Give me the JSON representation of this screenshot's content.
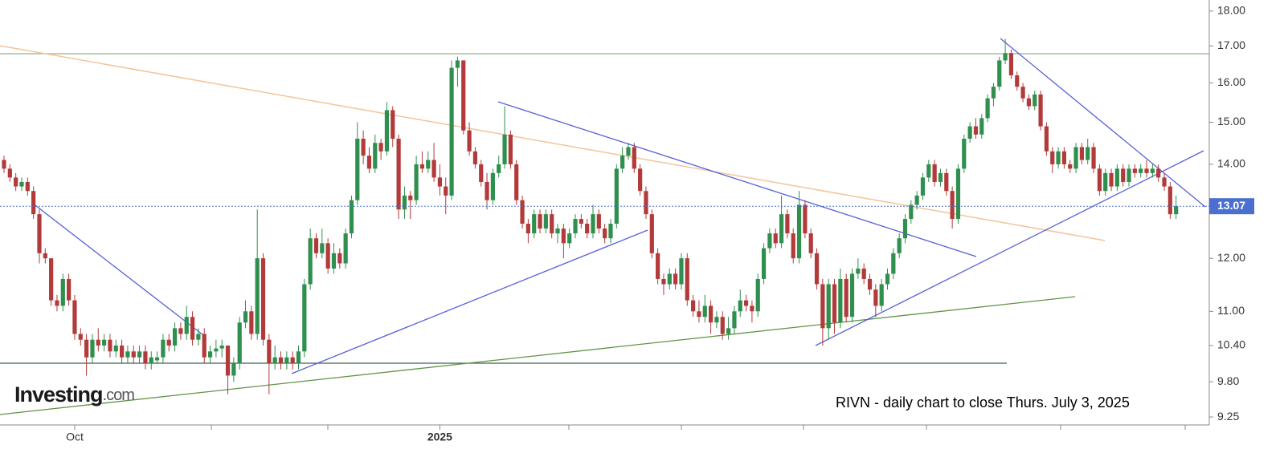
{
  "chart_data": {
    "type": "candlestick",
    "annotation": "RIVN - daily chart to close Thurs. July 3, 2025",
    "watermark": {
      "brand": "Investing",
      "suffix": ".com"
    },
    "log_scale": true,
    "ylim": [
      9.13,
      18.33
    ],
    "yticks": [
      {
        "value": 18,
        "label": "18.00"
      },
      {
        "value": 17,
        "label": "17.00"
      },
      {
        "value": 16,
        "label": "16.00"
      },
      {
        "value": 15,
        "label": "15.00"
      },
      {
        "value": 14,
        "label": "14.00"
      },
      {
        "value": 12,
        "label": "12.00"
      },
      {
        "value": 11,
        "label": "11.00"
      },
      {
        "value": 10.4,
        "label": "10.40"
      },
      {
        "value": 9.8,
        "label": "9.80"
      },
      9.25
    ],
    "last_price": 13.07,
    "colors": {
      "up": "#2f8f4e",
      "down": "#b23a3a",
      "last_price": "#4a6fd0"
    },
    "categories": [
      null,
      null,
      null,
      null,
      null,
      null,
      null,
      null,
      null,
      null,
      null,
      null,
      "Oct",
      null,
      null,
      null,
      null,
      null,
      null,
      null,
      null,
      null,
      null,
      null,
      null,
      null,
      null,
      null,
      null,
      null,
      null,
      null,
      null,
      null,
      null,
      null,
      null,
      null,
      null,
      null,
      null,
      null,
      null,
      null,
      null,
      null,
      null,
      null,
      null,
      null,
      null,
      null,
      null,
      null,
      null,
      null,
      null,
      null,
      null,
      null,
      null,
      null,
      null,
      null,
      null,
      null,
      null,
      null,
      null,
      null,
      null,
      null,
      null,
      null,
      "2025",
      null,
      null,
      null,
      null,
      null,
      null,
      null,
      null,
      null,
      null,
      null,
      null,
      null,
      null,
      null,
      null,
      null,
      null,
      null,
      null,
      null,
      null,
      null,
      null,
      null,
      null,
      null,
      null,
      null,
      null,
      null,
      null,
      null,
      null,
      null,
      null,
      null,
      null,
      null,
      null,
      null,
      null,
      null,
      null,
      null,
      null,
      null,
      null,
      null,
      null,
      null,
      null,
      null,
      null,
      null,
      null,
      null,
      null,
      null,
      null,
      null,
      null,
      null,
      null,
      null,
      null,
      null,
      null,
      null,
      null,
      null,
      null,
      null,
      null,
      null,
      null,
      null,
      null,
      null,
      null,
      null,
      null,
      null,
      null,
      null,
      null,
      null,
      null,
      null,
      null,
      null,
      null,
      null,
      null,
      null,
      null,
      null,
      null,
      null,
      null,
      null,
      null,
      null,
      null,
      null,
      null,
      null,
      null,
      null,
      null,
      null,
      null,
      null
    ],
    "ohlc": [
      [
        14.1,
        14.2,
        13.8,
        13.9
      ],
      [
        13.9,
        14.0,
        13.6,
        13.7
      ],
      [
        13.7,
        13.8,
        13.4,
        13.5
      ],
      [
        13.5,
        13.7,
        13.4,
        13.6
      ],
      [
        13.6,
        13.7,
        13.3,
        13.4
      ],
      [
        13.4,
        13.5,
        12.8,
        12.9
      ],
      [
        12.9,
        13.0,
        11.9,
        12.1
      ],
      [
        12.1,
        12.2,
        11.9,
        12.0
      ],
      [
        12.0,
        12.0,
        11.1,
        11.2
      ],
      [
        11.2,
        11.3,
        11.0,
        11.1
      ],
      [
        11.1,
        11.7,
        11.0,
        11.6
      ],
      [
        11.6,
        11.7,
        11.1,
        11.2
      ],
      [
        11.2,
        11.3,
        10.5,
        10.6
      ],
      [
        10.6,
        10.7,
        10.4,
        10.5
      ],
      [
        10.5,
        10.6,
        9.9,
        10.2
      ],
      [
        10.2,
        10.6,
        10.1,
        10.5
      ],
      [
        10.5,
        10.7,
        10.3,
        10.4
      ],
      [
        10.4,
        10.6,
        10.3,
        10.5
      ],
      [
        10.5,
        10.6,
        10.2,
        10.3
      ],
      [
        10.3,
        10.5,
        10.2,
        10.4
      ],
      [
        10.4,
        10.5,
        10.1,
        10.2
      ],
      [
        10.2,
        10.4,
        10.1,
        10.3
      ],
      [
        10.3,
        10.4,
        10.1,
        10.2
      ],
      [
        10.2,
        10.4,
        10.1,
        10.3
      ],
      [
        10.3,
        10.4,
        10.0,
        10.1
      ],
      [
        10.1,
        10.3,
        10.0,
        10.2
      ],
      [
        10.15,
        10.3,
        10.1,
        10.2
      ],
      [
        10.2,
        10.6,
        10.1,
        10.5
      ],
      [
        10.5,
        10.6,
        10.3,
        10.4
      ],
      [
        10.4,
        10.8,
        10.3,
        10.7
      ],
      [
        10.7,
        10.8,
        10.5,
        10.6
      ],
      [
        10.6,
        11.1,
        10.5,
        10.9
      ],
      [
        10.9,
        11.0,
        10.4,
        10.5
      ],
      [
        10.5,
        10.7,
        10.4,
        10.6
      ],
      [
        10.6,
        10.7,
        10.1,
        10.2
      ],
      [
        10.2,
        10.4,
        10.1,
        10.3
      ],
      [
        10.3,
        10.5,
        10.2,
        10.35
      ],
      [
        10.35,
        10.5,
        10.2,
        10.4
      ],
      [
        10.4,
        10.4,
        9.6,
        9.9
      ],
      [
        9.9,
        10.2,
        9.8,
        10.1
      ],
      [
        10.1,
        10.9,
        10.0,
        10.8
      ],
      [
        10.8,
        11.2,
        10.7,
        11.0
      ],
      [
        11.0,
        11.1,
        10.5,
        10.6
      ],
      [
        10.6,
        13.0,
        10.5,
        12.0
      ],
      [
        12.0,
        12.1,
        10.4,
        10.5
      ],
      [
        10.5,
        10.6,
        9.6,
        10.1
      ],
      [
        10.1,
        10.4,
        10.0,
        10.2
      ],
      [
        10.2,
        10.3,
        10.0,
        10.1
      ],
      [
        10.1,
        10.3,
        10.0,
        10.2
      ],
      [
        10.2,
        10.3,
        10.0,
        10.1
      ],
      [
        10.1,
        10.4,
        10.0,
        10.3
      ],
      [
        10.3,
        11.6,
        10.2,
        11.5
      ],
      [
        11.5,
        12.6,
        11.4,
        12.4
      ],
      [
        12.4,
        12.5,
        12.0,
        12.1
      ],
      [
        12.1,
        12.6,
        12.0,
        12.3
      ],
      [
        12.3,
        12.4,
        11.7,
        11.8
      ],
      [
        11.8,
        12.3,
        11.7,
        12.1
      ],
      [
        12.1,
        12.2,
        11.8,
        11.9
      ],
      [
        11.9,
        12.6,
        11.8,
        12.5
      ],
      [
        12.5,
        13.3,
        12.4,
        13.2
      ],
      [
        13.2,
        15.0,
        13.1,
        14.6
      ],
      [
        14.6,
        14.8,
        14.0,
        14.2
      ],
      [
        14.2,
        14.4,
        13.8,
        13.9
      ],
      [
        13.9,
        14.7,
        13.8,
        14.5
      ],
      [
        14.5,
        14.6,
        14.1,
        14.3
      ],
      [
        14.3,
        15.5,
        14.2,
        15.3
      ],
      [
        15.3,
        15.4,
        14.4,
        14.6
      ],
      [
        14.6,
        14.7,
        12.8,
        13.0
      ],
      [
        13.0,
        13.5,
        12.8,
        13.3
      ],
      [
        13.3,
        13.4,
        12.8,
        13.2
      ],
      [
        13.2,
        14.2,
        13.1,
        14.0
      ],
      [
        14.0,
        14.3,
        13.8,
        13.9
      ],
      [
        13.9,
        14.3,
        13.8,
        14.1
      ],
      [
        14.1,
        14.5,
        13.6,
        13.7
      ],
      [
        13.7,
        14.0,
        13.3,
        13.5
      ],
      [
        13.5,
        13.7,
        12.9,
        13.3
      ],
      [
        13.3,
        16.6,
        13.2,
        16.4
      ],
      [
        16.4,
        16.7,
        15.9,
        16.6
      ],
      [
        16.6,
        16.6,
        14.7,
        14.8
      ],
      [
        14.8,
        15.0,
        14.2,
        14.3
      ],
      [
        14.3,
        14.4,
        13.9,
        14.0
      ],
      [
        14.0,
        14.1,
        13.5,
        13.6
      ],
      [
        13.6,
        13.8,
        13.0,
        13.2
      ],
      [
        13.2,
        13.9,
        13.1,
        13.8
      ],
      [
        13.8,
        14.2,
        13.7,
        14.0
      ],
      [
        14.0,
        15.4,
        13.9,
        14.7
      ],
      [
        14.7,
        14.8,
        13.9,
        14.0
      ],
      [
        14.0,
        14.1,
        13.1,
        13.2
      ],
      [
        13.2,
        13.3,
        12.6,
        12.7
      ],
      [
        12.7,
        12.8,
        12.3,
        12.5
      ],
      [
        12.5,
        13.0,
        12.4,
        12.9
      ],
      [
        12.9,
        13.0,
        12.5,
        12.6
      ],
      [
        12.6,
        13.0,
        12.5,
        12.9
      ],
      [
        12.9,
        13.0,
        12.4,
        12.5
      ],
      [
        12.5,
        12.7,
        12.3,
        12.6
      ],
      [
        12.6,
        12.7,
        12.0,
        12.3
      ],
      [
        12.3,
        12.6,
        12.2,
        12.5
      ],
      [
        12.5,
        12.9,
        12.4,
        12.8
      ],
      [
        12.8,
        12.9,
        12.6,
        12.7
      ],
      [
        12.7,
        12.8,
        12.4,
        12.5
      ],
      [
        12.5,
        13.1,
        12.4,
        12.9
      ],
      [
        12.9,
        13.0,
        12.5,
        12.6
      ],
      [
        12.6,
        12.7,
        12.3,
        12.4
      ],
      [
        12.4,
        12.8,
        12.3,
        12.7
      ],
      [
        12.7,
        14.0,
        12.6,
        13.9
      ],
      [
        13.9,
        14.4,
        13.8,
        14.2
      ],
      [
        14.2,
        14.5,
        14.1,
        14.4
      ],
      [
        14.4,
        14.5,
        13.8,
        13.9
      ],
      [
        13.9,
        14.0,
        13.3,
        13.4
      ],
      [
        13.4,
        13.5,
        12.8,
        12.9
      ],
      [
        12.9,
        13.0,
        12.0,
        12.1
      ],
      [
        12.1,
        12.2,
        11.5,
        11.6
      ],
      [
        11.6,
        11.7,
        11.3,
        11.5
      ],
      [
        11.5,
        11.8,
        11.4,
        11.7
      ],
      [
        11.7,
        11.8,
        11.4,
        11.5
      ],
      [
        11.5,
        12.1,
        11.4,
        12.0
      ],
      [
        12.0,
        12.1,
        11.1,
        11.2
      ],
      [
        11.2,
        11.3,
        10.9,
        11.0
      ],
      [
        11.0,
        11.2,
        10.8,
        10.9
      ],
      [
        10.9,
        11.3,
        10.8,
        11.1
      ],
      [
        11.1,
        11.2,
        10.6,
        10.8
      ],
      [
        10.8,
        11.0,
        10.7,
        10.9
      ],
      [
        10.9,
        11.0,
        10.5,
        10.6
      ],
      [
        10.6,
        10.9,
        10.5,
        10.7
      ],
      [
        10.7,
        11.1,
        10.6,
        11.0
      ],
      [
        11.0,
        11.4,
        10.9,
        11.2
      ],
      [
        11.2,
        11.3,
        11.0,
        11.1
      ],
      [
        11.1,
        11.2,
        10.8,
        11.0
      ],
      [
        11.0,
        11.7,
        10.9,
        11.6
      ],
      [
        11.6,
        12.3,
        11.5,
        12.2
      ],
      [
        12.2,
        12.6,
        12.1,
        12.5
      ],
      [
        12.5,
        12.6,
        12.2,
        12.3
      ],
      [
        12.3,
        13.3,
        12.2,
        12.9
      ],
      [
        12.9,
        13.0,
        12.4,
        12.5
      ],
      [
        12.5,
        12.6,
        11.9,
        12.0
      ],
      [
        12.0,
        13.4,
        11.9,
        13.1
      ],
      [
        13.1,
        13.2,
        12.4,
        12.5
      ],
      [
        12.5,
        12.6,
        12.0,
        12.1
      ],
      [
        12.1,
        12.2,
        11.4,
        11.5
      ],
      [
        11.5,
        11.6,
        10.4,
        10.7
      ],
      [
        10.7,
        11.6,
        10.5,
        11.5
      ],
      [
        11.5,
        11.6,
        10.6,
        10.8
      ],
      [
        10.8,
        11.8,
        10.7,
        11.6
      ],
      [
        11.6,
        11.7,
        10.8,
        10.9
      ],
      [
        10.9,
        11.8,
        10.8,
        11.7
      ],
      [
        11.7,
        12.0,
        11.6,
        11.8
      ],
      [
        11.8,
        11.9,
        11.5,
        11.6
      ],
      [
        11.6,
        11.7,
        11.3,
        11.4
      ],
      [
        11.4,
        11.5,
        10.9,
        11.1
      ],
      [
        11.1,
        11.6,
        11.0,
        11.5
      ],
      [
        11.5,
        11.8,
        11.4,
        11.7
      ],
      [
        11.7,
        12.2,
        11.6,
        12.1
      ],
      [
        12.1,
        12.5,
        12.0,
        12.4
      ],
      [
        12.4,
        12.9,
        12.3,
        12.8
      ],
      [
        12.8,
        13.2,
        12.7,
        13.1
      ],
      [
        13.1,
        13.4,
        13.0,
        13.3
      ],
      [
        13.3,
        13.8,
        13.2,
        13.7
      ],
      [
        13.7,
        14.1,
        13.6,
        14.0
      ],
      [
        14.0,
        14.1,
        13.5,
        13.6
      ],
      [
        13.6,
        13.9,
        13.5,
        13.8
      ],
      [
        13.8,
        13.9,
        13.3,
        13.4
      ],
      [
        13.4,
        13.5,
        12.6,
        12.8
      ],
      [
        12.8,
        14.0,
        12.7,
        13.9
      ],
      [
        13.9,
        14.7,
        13.8,
        14.6
      ],
      [
        14.6,
        15.0,
        14.5,
        14.9
      ],
      [
        14.9,
        15.1,
        14.6,
        14.7
      ],
      [
        14.7,
        15.2,
        14.6,
        15.1
      ],
      [
        15.1,
        15.7,
        15.0,
        15.6
      ],
      [
        15.6,
        16.0,
        15.4,
        15.9
      ],
      [
        15.9,
        16.7,
        15.8,
        16.6
      ],
      [
        16.6,
        17.2,
        16.5,
        16.8
      ],
      [
        16.8,
        16.9,
        16.1,
        16.2
      ],
      [
        16.2,
        16.3,
        15.8,
        15.9
      ],
      [
        15.9,
        16.0,
        15.5,
        15.6
      ],
      [
        15.6,
        15.7,
        15.3,
        15.4
      ],
      [
        15.4,
        15.8,
        15.3,
        15.7
      ],
      [
        15.7,
        15.8,
        14.8,
        14.9
      ],
      [
        14.9,
        15.0,
        14.2,
        14.3
      ],
      [
        14.3,
        14.4,
        13.8,
        14.0
      ],
      [
        14.0,
        14.4,
        13.9,
        14.3
      ],
      [
        14.3,
        14.4,
        13.9,
        14.0
      ],
      [
        14.0,
        14.1,
        13.8,
        13.9
      ],
      [
        13.9,
        14.5,
        13.8,
        14.4
      ],
      [
        14.4,
        14.5,
        14.0,
        14.1
      ],
      [
        14.1,
        14.6,
        14.0,
        14.4
      ],
      [
        14.4,
        14.5,
        13.8,
        13.9
      ],
      [
        13.9,
        14.0,
        13.3,
        13.4
      ],
      [
        13.4,
        13.9,
        13.3,
        13.8
      ],
      [
        13.8,
        13.9,
        13.4,
        13.5
      ],
      [
        13.5,
        14.0,
        13.4,
        13.9
      ],
      [
        13.9,
        14.0,
        13.5,
        13.6
      ],
      [
        13.6,
        14.0,
        13.5,
        13.9
      ],
      [
        13.9,
        14.0,
        13.7,
        13.8
      ],
      [
        13.8,
        14.0,
        13.7,
        13.9
      ],
      [
        13.9,
        14.1,
        13.7,
        13.8
      ],
      [
        13.8,
        14.0,
        13.7,
        13.9
      ],
      [
        13.9,
        14.0,
        13.6,
        13.7
      ],
      [
        13.7,
        13.8,
        13.4,
        13.5
      ],
      [
        13.5,
        13.6,
        12.8,
        12.9
      ],
      [
        12.9,
        13.3,
        12.8,
        13.07
      ]
    ]
  }
}
